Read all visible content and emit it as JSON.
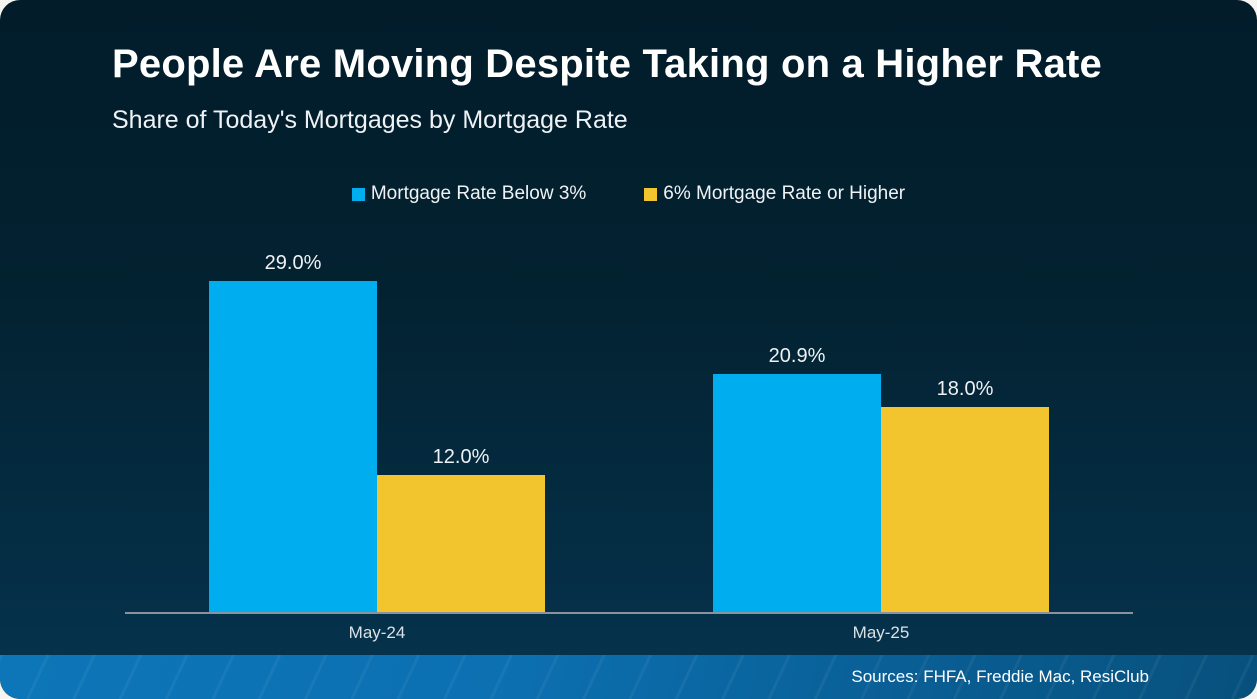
{
  "card": {
    "title": "People Are Moving Despite Taking on a Higher Rate",
    "subtitle": "Share of Today's Mortgages by Mortgage Rate",
    "source": "Sources: FHFA, Freddie Mac, ResiClub"
  },
  "colors": {
    "page_background": "#F5F4F0",
    "card_background_top": "#021C2A",
    "card_background_bottom": "#06344D",
    "series_blue": "#00AEEF",
    "series_yellow": "#F2C42D",
    "axis_line": "#8A939C",
    "footer_blue_left": "#0D76B8",
    "footer_blue_right": "#07507C",
    "text": "#FFFFFF"
  },
  "chart_data": {
    "type": "bar",
    "title": "People Are Moving Despite Taking on a Higher Rate",
    "subtitle": "Share of Today's Mortgages by Mortgage Rate",
    "categories": [
      "May-24",
      "May-25"
    ],
    "series": [
      {
        "name": "Mortgage Rate Below 3%",
        "color": "#00AEEF",
        "values": [
          29.0,
          20.9
        ],
        "value_labels": [
          "29.0%",
          "20.9%"
        ]
      },
      {
        "name": "6% Mortgage Rate or Higher",
        "color": "#F2C42D",
        "values": [
          12.0,
          18.0
        ],
        "value_labels": [
          "12.0%",
          "18.0%"
        ]
      }
    ],
    "xlabel": "",
    "ylabel": "",
    "ylim": [
      0,
      32.8
    ],
    "grid": false,
    "legend_position": "top-center",
    "data_labels": true,
    "source_note": "Sources: FHFA, Freddie Mac, ResiClub"
  }
}
